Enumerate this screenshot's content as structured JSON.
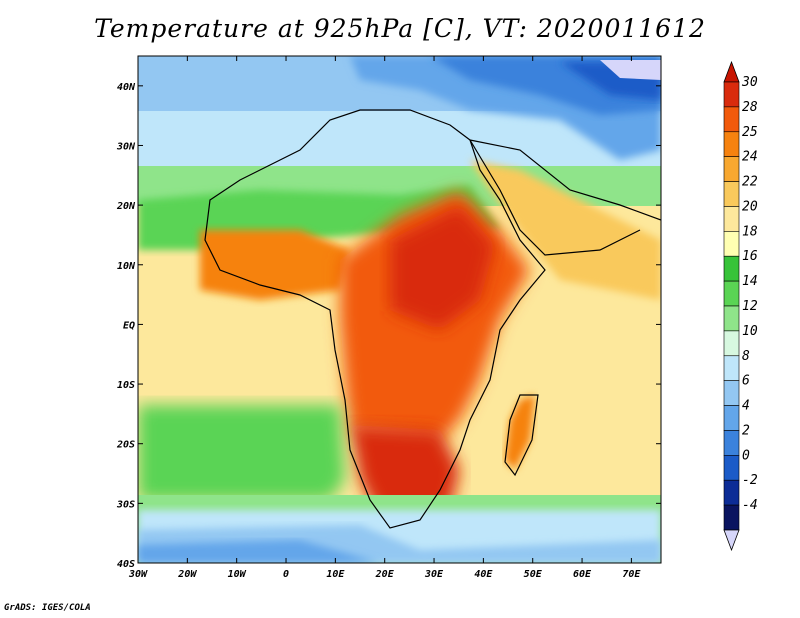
{
  "title": "Temperature at 925hPa [C], VT: 2020011612",
  "credit": "GrADS: IGES/COLA",
  "map": {
    "lon_range": [
      -30,
      76
    ],
    "lat_range": [
      -40,
      45
    ],
    "lon_ticks": [
      {
        "v": -30,
        "label": "30W"
      },
      {
        "v": -20,
        "label": "20W"
      },
      {
        "v": -10,
        "label": "10W"
      },
      {
        "v": 0,
        "label": "0"
      },
      {
        "v": 10,
        "label": "10E"
      },
      {
        "v": 20,
        "label": "20E"
      },
      {
        "v": 30,
        "label": "30E"
      },
      {
        "v": 40,
        "label": "40E"
      },
      {
        "v": 50,
        "label": "50E"
      },
      {
        "v": 60,
        "label": "60E"
      },
      {
        "v": 70,
        "label": "70E"
      }
    ],
    "lat_ticks": [
      {
        "v": 40,
        "label": "40N"
      },
      {
        "v": 30,
        "label": "30N"
      },
      {
        "v": 20,
        "label": "20N"
      },
      {
        "v": 10,
        "label": "10N"
      },
      {
        "v": 0,
        "label": "EQ"
      },
      {
        "v": -10,
        "label": "10S"
      },
      {
        "v": -20,
        "label": "20S"
      },
      {
        "v": -30,
        "label": "30S"
      },
      {
        "v": -40,
        "label": "40S"
      }
    ]
  },
  "colorbar": {
    "labels": [
      "30",
      "28",
      "25",
      "24",
      "22",
      "20",
      "18",
      "16",
      "14",
      "12",
      "10",
      "8",
      "6",
      "4",
      "2",
      "0",
      "-2",
      "-4"
    ],
    "colors": [
      "#d92b0d",
      "#f25a0c",
      "#f6820f",
      "#f8a830",
      "#f9c95c",
      "#fde89c",
      "#ffffb2",
      "#37c339",
      "#5ad454",
      "#8fe48a",
      "#d7f8e0",
      "#bfe6fa",
      "#93c7f2",
      "#63a6ea",
      "#3b82dc",
      "#1b5bc8",
      "#0c2c96",
      "#0a1460"
    ],
    "over_color": "#c81400",
    "under_color": "#d6d6fa"
  }
}
